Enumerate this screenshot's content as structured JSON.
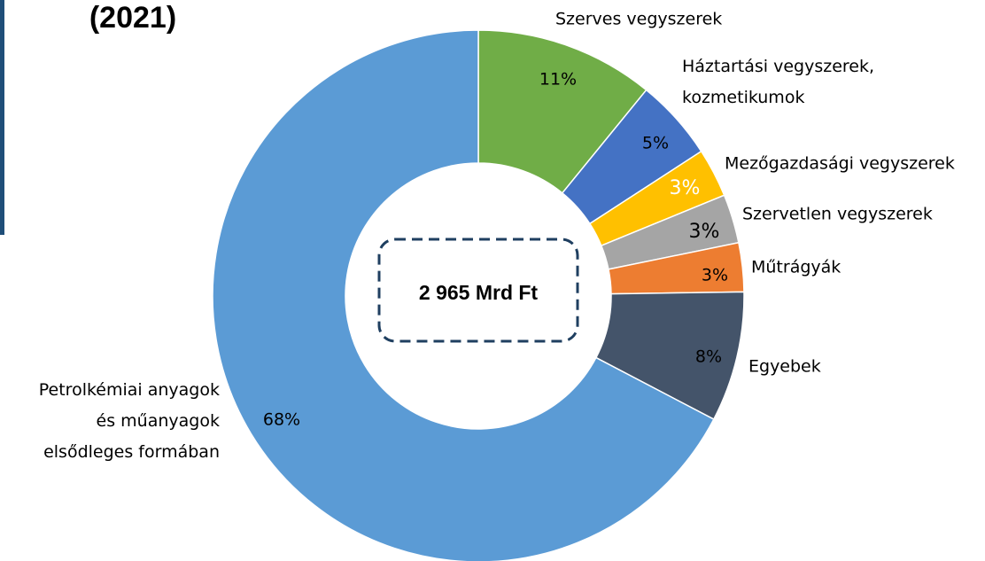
{
  "chart_data": {
    "type": "donut",
    "title": "(2021)",
    "center_label": "2 965 Mrd Ft",
    "categories": [
      "Szerves vegyszerek",
      "Háztartási vegyszerek,\nkozmetikumok",
      "Mezőgazdasági vegyszerek",
      "Szervetlen vegyszerek",
      "Műtrágyák",
      "Egyebek",
      "Petrolkémiai anyagok\nés műanyagok\nelsődleges formában"
    ],
    "values": [
      11,
      5,
      3,
      3,
      3,
      8,
      68
    ],
    "value_labels": [
      "11%",
      "5%",
      "3%",
      "3%",
      "3%",
      "8%",
      "68%"
    ],
    "colors": [
      "#70ad47",
      "#4472c4",
      "#ffc000",
      "#a5a5a5",
      "#ed7d31",
      "#44546a",
      "#5b9bd5"
    ]
  }
}
